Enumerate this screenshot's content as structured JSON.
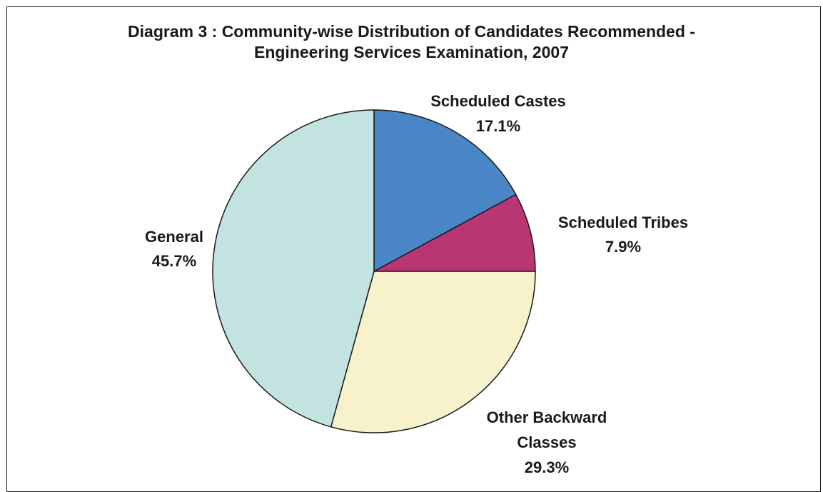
{
  "chart_data": {
    "type": "pie",
    "title_lines": [
      "Diagram 3 : Community-wise Distribution of Candidates Recommended -",
      "Engineering Services Examination, 2007"
    ],
    "slices": [
      {
        "key": "sc",
        "label_lines": [
          "Scheduled Castes"
        ],
        "value": 17.1,
        "value_label": "17.1%",
        "color": "#4a86c5"
      },
      {
        "key": "st",
        "label_lines": [
          "Scheduled Tribes"
        ],
        "value": 7.9,
        "value_label": "7.9%",
        "color": "#b83671"
      },
      {
        "key": "obc",
        "label_lines": [
          "Other Backward",
          "Classes"
        ],
        "value": 29.3,
        "value_label": "29.3%",
        "color": "#f7f2cc"
      },
      {
        "key": "gen",
        "label_lines": [
          "General"
        ],
        "value": 45.7,
        "value_label": "45.7%",
        "color": "#c3e3e1"
      }
    ],
    "start": "12 o'clock",
    "direction": "clockwise",
    "legend": "none (direct labels)",
    "outline_color": "#1a1a1a"
  }
}
